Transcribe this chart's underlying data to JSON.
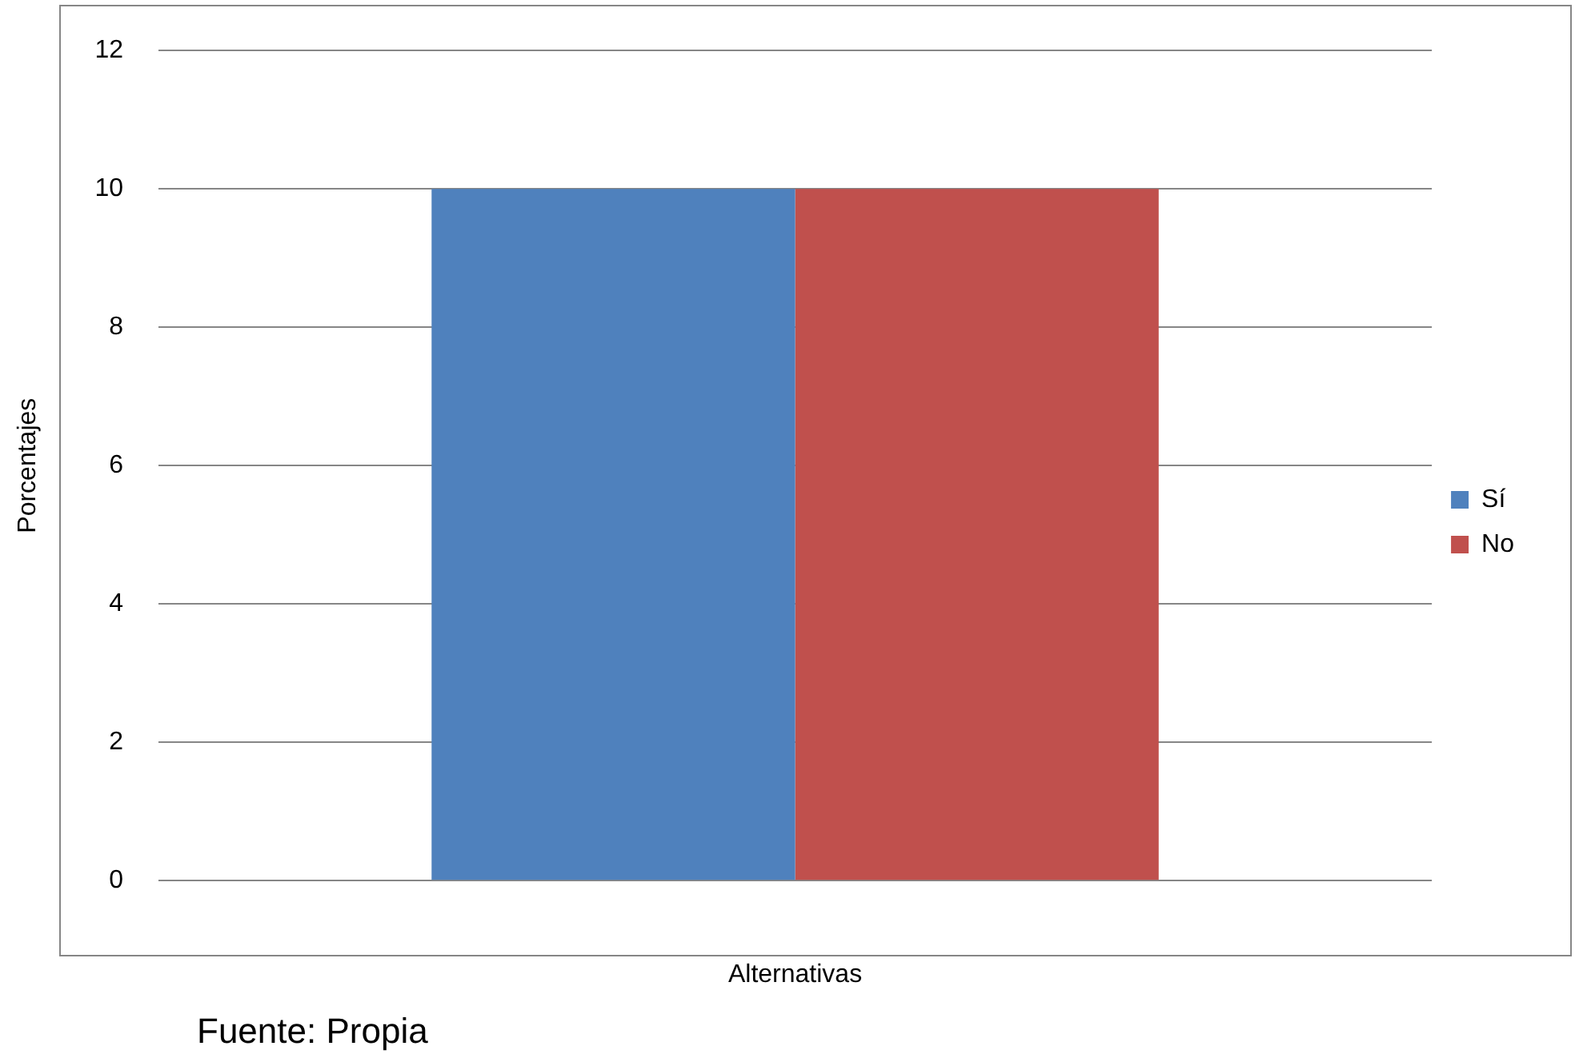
{
  "chart_data": {
    "type": "bar",
    "xlabel": "Alternativas",
    "ylabel": "Porcentajes",
    "categories": [
      null
    ],
    "series": [
      {
        "name": "Sí",
        "color": "#4f81bd",
        "values": [
          10
        ]
      },
      {
        "name": "No",
        "color": "#c0504d",
        "values": [
          10
        ]
      }
    ],
    "ylim": [
      0,
      12
    ],
    "yticks": [
      0,
      2,
      4,
      6,
      8,
      10,
      12
    ],
    "grid": "y",
    "legend": "right",
    "annotations": [
      "Fuente: Propia"
    ]
  }
}
